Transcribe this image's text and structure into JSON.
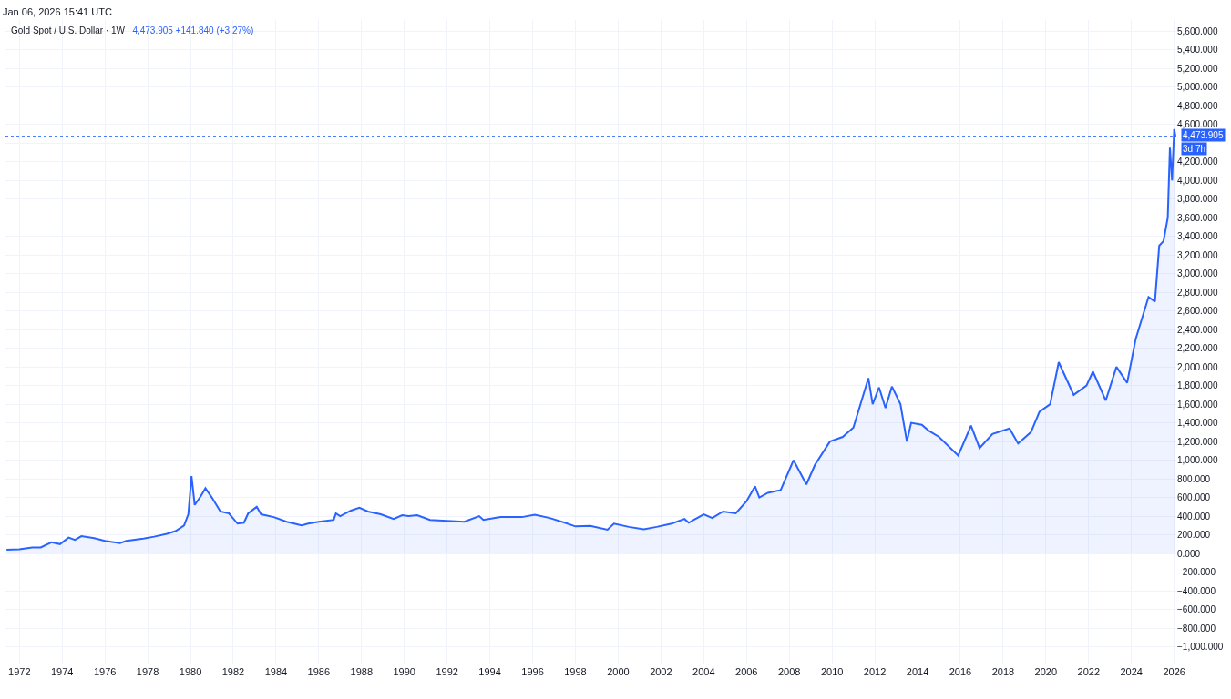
{
  "chart_data": {
    "type": "area",
    "title": "Gold Spot / U.S. Dollar · 1W",
    "subtitle": "4,473.905 +141.840 (+3.27%)",
    "annotations": [
      "Jan 06, 2026 15:41 UTC",
      "3d 7h"
    ],
    "x": [
      1971.4,
      1972.0,
      1972.6,
      1973.0,
      1973.5,
      1973.9,
      1974.3,
      1974.6,
      1974.9,
      1975.5,
      1976.0,
      1976.7,
      1977.0,
      1977.8,
      1978.3,
      1978.9,
      1979.3,
      1979.7,
      1979.9,
      1980.05,
      1980.2,
      1980.5,
      1980.7,
      1981.0,
      1981.4,
      1981.8,
      1982.2,
      1982.5,
      1982.7,
      1983.1,
      1983.3,
      1983.9,
      1984.5,
      1985.2,
      1985.5,
      1986.0,
      1986.7,
      1986.8,
      1987.0,
      1987.5,
      1987.9,
      1988.3,
      1988.9,
      1989.5,
      1989.9,
      1990.2,
      1990.6,
      1991.2,
      1992.0,
      1992.8,
      1993.5,
      1993.7,
      1994.5,
      1995.5,
      1996.1,
      1996.8,
      1997.5,
      1998.0,
      1998.7,
      1999.5,
      1999.8,
      2000.5,
      2001.2,
      2001.8,
      2002.5,
      2003.1,
      2003.3,
      2004.0,
      2004.4,
      2004.9,
      2005.5,
      2006.0,
      2006.4,
      2006.6,
      2007.0,
      2007.6,
      2008.2,
      2008.8,
      2009.2,
      2009.9,
      2010.5,
      2011.0,
      2011.7,
      2011.9,
      2012.2,
      2012.5,
      2012.8,
      2013.2,
      2013.5,
      2013.7,
      2014.2,
      2014.5,
      2015.0,
      2015.9,
      2016.5,
      2016.9,
      2017.5,
      2018.3,
      2018.7,
      2019.3,
      2019.7,
      2020.2,
      2020.6,
      2021.0,
      2021.3,
      2021.9,
      2022.2,
      2022.8,
      2023.3,
      2023.8,
      2024.2,
      2024.8,
      2025.1,
      2025.3,
      2025.5,
      2025.7,
      2025.8,
      2025.9,
      2026.0,
      2026.06
    ],
    "series": [
      {
        "color": "#2962ff",
        "values": [
          40,
          45,
          65,
          65,
          120,
          100,
          170,
          145,
          185,
          165,
          135,
          110,
          135,
          160,
          180,
          210,
          240,
          300,
          420,
          830,
          520,
          620,
          700,
          600,
          450,
          430,
          320,
          330,
          430,
          500,
          420,
          390,
          340,
          300,
          320,
          340,
          360,
          430,
          400,
          460,
          490,
          450,
          420,
          370,
          410,
          400,
          410,
          360,
          350,
          340,
          400,
          360,
          390,
          390,
          415,
          380,
          330,
          290,
          295,
          255,
          320,
          285,
          260,
          285,
          320,
          370,
          330,
          420,
          380,
          450,
          430,
          560,
          720,
          600,
          650,
          680,
          1000,
          740,
          950,
          1200,
          1250,
          1350,
          1880,
          1600,
          1780,
          1560,
          1790,
          1600,
          1200,
          1400,
          1380,
          1320,
          1250,
          1050,
          1370,
          1130,
          1280,
          1340,
          1180,
          1300,
          1520,
          1600,
          2050,
          1850,
          1700,
          1800,
          1950,
          1640,
          2000,
          1830,
          2300,
          2750,
          2700,
          3300,
          3350,
          3600,
          4350,
          4000,
          4550,
          4473.905
        ]
      }
    ],
    "xlim": [
      1971.35,
      2026.1
    ],
    "xticks": [
      1972,
      1974,
      1976,
      1978,
      1980,
      1982,
      1984,
      1986,
      1988,
      1990,
      1992,
      1994,
      1996,
      1998,
      2000,
      2002,
      2004,
      2006,
      2008,
      2010,
      2012,
      2014,
      2016,
      2018,
      2020,
      2022,
      2024,
      2026
    ],
    "ylim": [
      -1190,
      5720
    ],
    "yticks": [
      {
        "value": -1000,
        "label": "−1,000.000"
      },
      {
        "value": -800,
        "label": "−800.000"
      },
      {
        "value": -600,
        "label": "−600.000"
      },
      {
        "value": -400,
        "label": "−400.000"
      },
      {
        "value": -200,
        "label": "−200.000"
      },
      {
        "value": 0,
        "label": "0.000"
      },
      {
        "value": 200,
        "label": "200.000"
      },
      {
        "value": 400,
        "label": "400.000"
      },
      {
        "value": 600,
        "label": "600.000"
      },
      {
        "value": 800,
        "label": "800.000"
      },
      {
        "value": 1000,
        "label": "1,000.000"
      },
      {
        "value": 1200,
        "label": "1,200.000"
      },
      {
        "value": 1400,
        "label": "1,400.000"
      },
      {
        "value": 1600,
        "label": "1,600.000"
      },
      {
        "value": 1800,
        "label": "1,800.000"
      },
      {
        "value": 2000,
        "label": "2,000.000"
      },
      {
        "value": 2200,
        "label": "2,200.000"
      },
      {
        "value": 2400,
        "label": "2,400.000"
      },
      {
        "value": 2600,
        "label": "2,600.000"
      },
      {
        "value": 2800,
        "label": "2,800.000"
      },
      {
        "value": 3000,
        "label": "3,000.000"
      },
      {
        "value": 3200,
        "label": "3,200.000"
      },
      {
        "value": 3400,
        "label": "3,400.000"
      },
      {
        "value": 3600,
        "label": "3,600.000"
      },
      {
        "value": 3800,
        "label": "3,800.000"
      },
      {
        "value": 4000,
        "label": "4,000.000"
      },
      {
        "value": 4200,
        "label": "4,200.000"
      },
      {
        "value": 4400,
        "label": null
      },
      {
        "value": 4600,
        "label": "4,600.000"
      },
      {
        "value": 4800,
        "label": "4,800.000"
      },
      {
        "value": 5000,
        "label": "5,000.000"
      },
      {
        "value": 5200,
        "label": "5,200.000"
      },
      {
        "value": 5400,
        "label": "5,400.000"
      },
      {
        "value": 5600,
        "label": "5,600.000"
      }
    ],
    "ref_lines": [
      {
        "axis": "y",
        "value": 4473.905,
        "label": "4,473.905",
        "color": "#2962ff",
        "line_style": "dotted"
      }
    ],
    "grid": true
  }
}
